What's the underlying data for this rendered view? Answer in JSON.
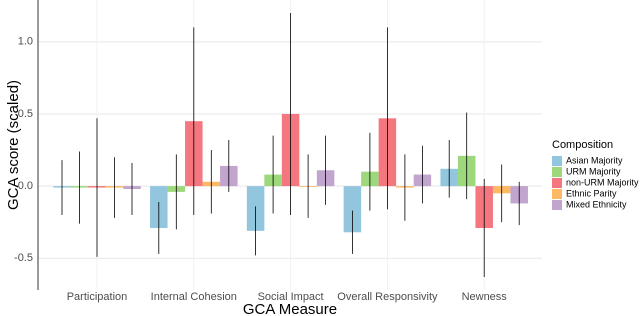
{
  "chart_data": {
    "type": "bar",
    "x_label": "GCA Measure",
    "y_label": "GCA score (scaled)",
    "legend_title": "Composition",
    "legend_position": "right",
    "grid": true,
    "categories": [
      "Participation",
      "Internal Cohesion",
      "Social Impact",
      "Overall Responsivity",
      "Newness"
    ],
    "ylim": [
      -0.72,
      1.29
    ],
    "yticks": [
      -0.5,
      {
        "value": 0,
        "label": "0.0"
      },
      {
        "value": 0.5,
        "label": "0.5"
      },
      {
        "value": 1,
        "label": "1.0"
      }
    ],
    "series": [
      {
        "name": "Asian Majority",
        "color": "#92c5de",
        "values": [
          -0.01,
          -0.29,
          -0.31,
          -0.32,
          0.12
        ],
        "errors": [
          0.19,
          0.18,
          0.17,
          0.15,
          0.2
        ]
      },
      {
        "name": "URM Majority",
        "color": "#9dd87c",
        "values": [
          -0.01,
          -0.04,
          0.08,
          0.1,
          0.21
        ],
        "errors": [
          0.25,
          0.26,
          0.27,
          0.27,
          0.3
        ]
      },
      {
        "name": "non-URM Majority",
        "color": "#f4777f",
        "values": [
          -0.01,
          0.45,
          0.5,
          0.47,
          -0.29
        ],
        "errors": [
          0.48,
          0.65,
          0.7,
          0.63,
          0.34
        ]
      },
      {
        "name": "Ethnic Parity",
        "color": "#fdb863",
        "values": [
          -0.01,
          0.03,
          0,
          -0.01,
          -0.05
        ],
        "errors": [
          0.21,
          0.22,
          0.22,
          0.23,
          0.2
        ]
      },
      {
        "name": "Mixed Ethnicity",
        "color": "#c2a5cf",
        "values": [
          -0.02,
          0.14,
          0.11,
          0.08,
          -0.12
        ],
        "errors": [
          0.18,
          0.18,
          0.24,
          0.2,
          0.15
        ]
      }
    ]
  }
}
